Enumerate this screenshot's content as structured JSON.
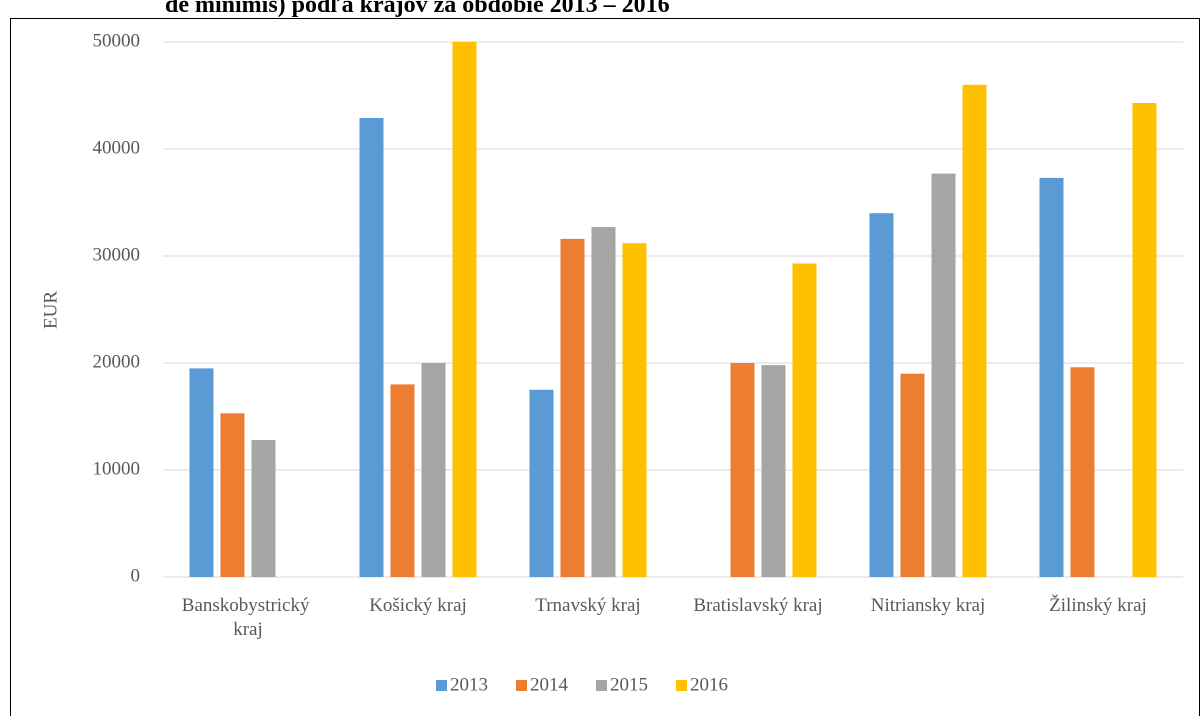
{
  "chart_data": {
    "type": "bar",
    "title": "de minimis) podľa krajov za obdobie 2013 – 2016",
    "y_label": "EUR",
    "categories": [
      "Banskobystrický kraj",
      "Košický kraj",
      "Trnavský kraj",
      "Bratislavský kraj",
      "Nitriansky kraj",
      "Žilinský kraj"
    ],
    "series": [
      {
        "name": "2013",
        "color": "#5b9bd5",
        "values": [
          19500,
          42900,
          17500,
          null,
          34000,
          37300
        ]
      },
      {
        "name": "2014",
        "color": "#ed7d31",
        "values": [
          15300,
          18000,
          31600,
          20000,
          19000,
          19600
        ]
      },
      {
        "name": "2015",
        "color": "#a5a5a5",
        "values": [
          12800,
          20000,
          32700,
          19800,
          37700,
          null
        ]
      },
      {
        "name": "2016",
        "color": "#ffc000",
        "values": [
          null,
          50000,
          31200,
          29300,
          46000,
          44300
        ]
      }
    ],
    "ylim": [
      0,
      50000
    ],
    "yticks": [
      0,
      10000,
      20000,
      30000,
      40000,
      50000
    ],
    "grid": true,
    "legend": "bottom"
  }
}
